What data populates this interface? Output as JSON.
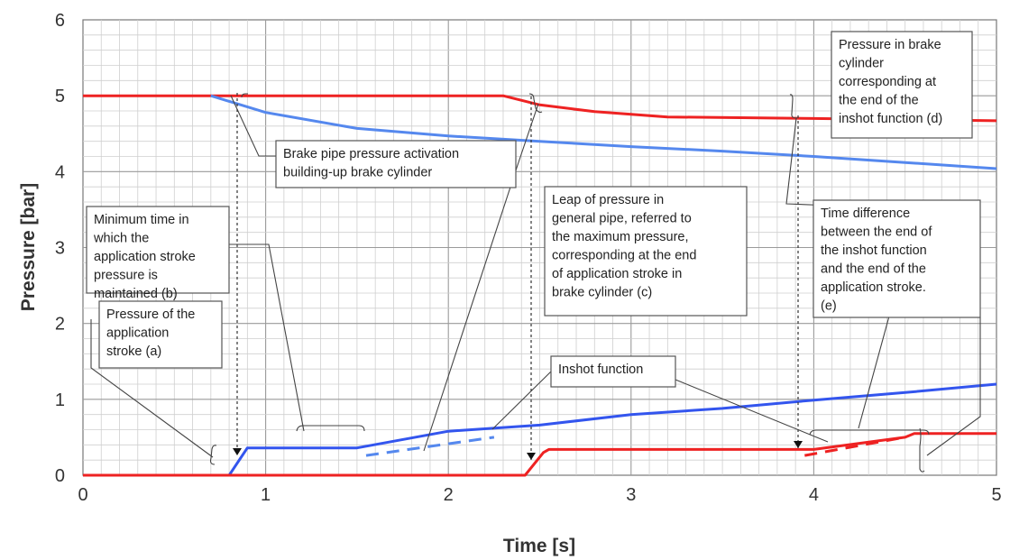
{
  "chart_data": {
    "type": "line",
    "xlabel": "Time [s]",
    "ylabel": "Pressure [bar]",
    "xlim": [
      0,
      5
    ],
    "ylim": [
      0,
      6
    ],
    "x_ticks": [
      "0",
      "1",
      "2",
      "3",
      "4",
      "5"
    ],
    "y_ticks": [
      "0",
      "1",
      "2",
      "3",
      "4",
      "5",
      "6"
    ],
    "grid": true,
    "colors": {
      "red": "#ee2222",
      "blue": "#3355ee",
      "blue_light": "#5588ee"
    },
    "series": [
      {
        "color": "red",
        "style": "solid",
        "points": [
          [
            0,
            5
          ],
          [
            2.3,
            5
          ],
          [
            2.5,
            4.88
          ],
          [
            2.8,
            4.79
          ],
          [
            3.2,
            4.72
          ],
          [
            4,
            4.7
          ],
          [
            5,
            4.67
          ]
        ]
      },
      {
        "color": "blue_light",
        "style": "solid",
        "points": [
          [
            0.7,
            5
          ],
          [
            1,
            4.78
          ],
          [
            1.5,
            4.57
          ],
          [
            2,
            4.47
          ],
          [
            2.5,
            4.4
          ],
          [
            3,
            4.33
          ],
          [
            3.5,
            4.27
          ],
          [
            4,
            4.2
          ],
          [
            4.5,
            4.12
          ],
          [
            5,
            4.04
          ]
        ]
      },
      {
        "color": "blue",
        "style": "solid",
        "points": [
          [
            0,
            0
          ],
          [
            0.8,
            0
          ],
          [
            0.9,
            0.36
          ],
          [
            1.5,
            0.36
          ],
          [
            2,
            0.58
          ],
          [
            2.5,
            0.66
          ],
          [
            3,
            0.8
          ],
          [
            3.5,
            0.88
          ],
          [
            4,
            0.99
          ],
          [
            4.5,
            1.09
          ],
          [
            5,
            1.2
          ]
        ]
      },
      {
        "color": "red",
        "style": "solid",
        "points": [
          [
            0,
            0
          ],
          [
            2.42,
            0
          ],
          [
            2.52,
            0.3
          ],
          [
            2.55,
            0.34
          ],
          [
            3,
            0.34
          ],
          [
            4,
            0.34
          ],
          [
            4.5,
            0.5
          ],
          [
            4.55,
            0.55
          ],
          [
            5,
            0.55
          ]
        ]
      },
      {
        "color": "blue_light",
        "style": "dashed",
        "points": [
          [
            1.55,
            0.26
          ],
          [
            2.25,
            0.5
          ]
        ]
      },
      {
        "color": "red",
        "style": "dashed",
        "points": [
          [
            3.95,
            0.26
          ],
          [
            4.5,
            0.5
          ]
        ]
      }
    ],
    "annotations": [
      {
        "id": "a",
        "lines": [
          "Pressure of the",
          "application",
          "stroke (a)"
        ]
      },
      {
        "id": "b",
        "lines": [
          "Minimum time in",
          "which the",
          "application stroke",
          "pressure is",
          "maintained (b)"
        ]
      },
      {
        "id": "act",
        "lines": [
          "Brake pipe pressure activation",
          "building-up brake cylinder"
        ]
      },
      {
        "id": "c",
        "lines": [
          "Leap of pressure in",
          "general pipe, referred to",
          "the maximum pressure,",
          "corresponding at the end",
          "of application stroke in",
          "brake cylinder (c)"
        ]
      },
      {
        "id": "inshot",
        "lines": [
          "Inshot function"
        ]
      },
      {
        "id": "d",
        "lines": [
          "Pressure in brake",
          "cylinder",
          "corresponding at",
          "the end of the",
          "inshot function (d)"
        ]
      },
      {
        "id": "e",
        "lines": [
          "Time difference",
          "between the end of",
          "the inshot function",
          "and the end of the",
          "application stroke.",
          "(e)"
        ]
      }
    ]
  }
}
